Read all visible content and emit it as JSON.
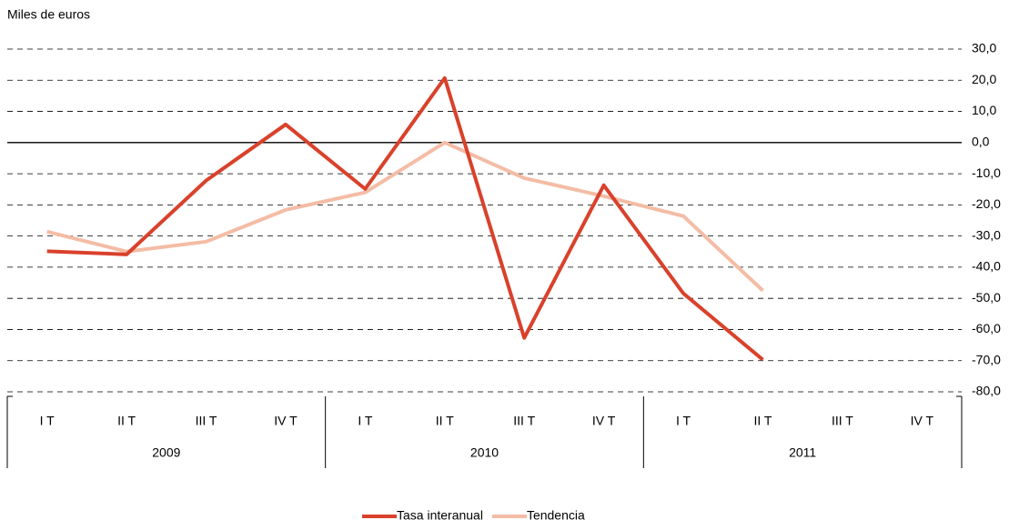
{
  "chart_data": {
    "type": "line",
    "y_axis_label": "Miles de euros",
    "categories": [
      "I T",
      "II T",
      "III T",
      "IV T",
      "I T",
      "II T",
      "III T",
      "IV T",
      "I T",
      "II T",
      "III T",
      "IV T"
    ],
    "group_labels": [
      "2009",
      "2010",
      "2011"
    ],
    "series": [
      {
        "name": "Tasa interanual",
        "color": "#d9412b",
        "values": [
          -34.9,
          -35.9,
          -12.2,
          5.8,
          -14.9,
          20.7,
          -62.7,
          -13.7,
          -48.4,
          -69.7,
          null,
          null
        ]
      },
      {
        "name": "Tendencia",
        "color": "#f4bca5",
        "values": [
          -28.6,
          -35.0,
          -31.8,
          -21.6,
          -16.0,
          0.0,
          -11.4,
          -17.2,
          -23.6,
          -47.5,
          null,
          null
        ]
      }
    ],
    "ylim": [
      -80,
      30
    ],
    "yticks": [
      {
        "value": 30,
        "label": "30,0"
      },
      {
        "value": 20,
        "label": "20,0"
      },
      {
        "value": 10,
        "label": "10,0"
      },
      {
        "value": 0,
        "label": "0,0"
      },
      {
        "value": -10,
        "label": "-10,0"
      },
      {
        "value": -20,
        "label": "-20,0"
      },
      {
        "value": -30,
        "label": "-30,0"
      },
      {
        "value": -40,
        "label": "-40,0"
      },
      {
        "value": -50,
        "label": "-50,0"
      },
      {
        "value": -60,
        "label": "-60,0"
      },
      {
        "value": -70,
        "label": "-70,0"
      },
      {
        "value": -80,
        "label": "-80,0"
      }
    ],
    "grid": true,
    "legend": "bottom"
  }
}
